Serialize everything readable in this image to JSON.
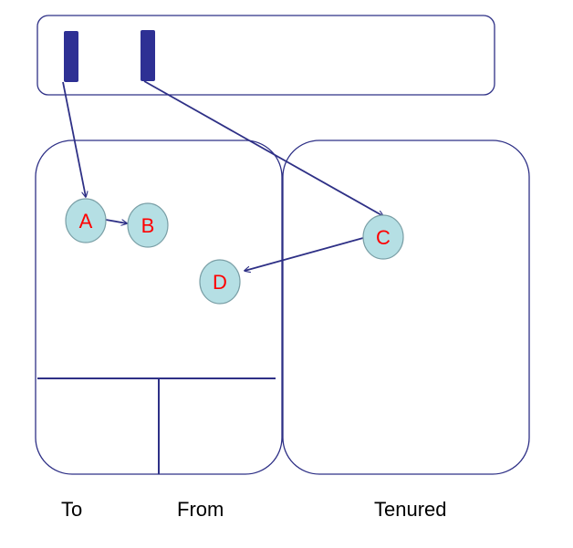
{
  "colors": {
    "outline": "#2e3086",
    "root_fill": "#2e3094",
    "node_fill": "#b5dfe4",
    "node_stroke": "#7a9fa6",
    "node_text": "#ff0000",
    "label_text": "#000000"
  },
  "roots": [
    {
      "id": "root-1"
    },
    {
      "id": "root-2"
    }
  ],
  "nodes": [
    {
      "id": "A",
      "label": "A"
    },
    {
      "id": "B",
      "label": "B"
    },
    {
      "id": "C",
      "label": "C"
    },
    {
      "id": "D",
      "label": "D"
    }
  ],
  "edges": [
    {
      "from": "root-1",
      "to": "A"
    },
    {
      "from": "root-2",
      "to": "C"
    },
    {
      "from": "A",
      "to": "B"
    },
    {
      "from": "C",
      "to": "D"
    }
  ],
  "labels": {
    "to": "To",
    "from": "From",
    "tenured": "Tenured"
  }
}
